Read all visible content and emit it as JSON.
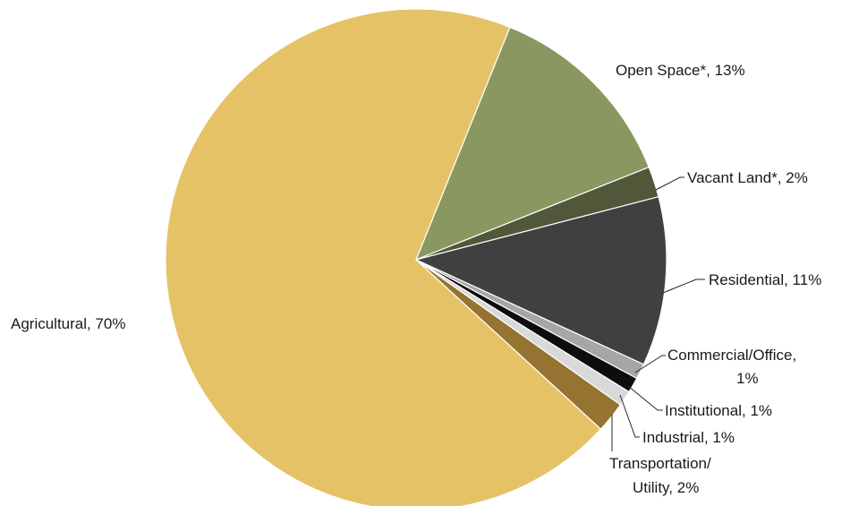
{
  "chart_data": {
    "type": "pie",
    "title": "",
    "start_angle_deg": 22,
    "direction": "clockwise",
    "slices": [
      {
        "label": "Open Space*, 13%",
        "value": 13,
        "color": "#899860"
      },
      {
        "label": "Vacant Land*, 2%",
        "value": 2,
        "color": "#515839"
      },
      {
        "label": "Residential, 11%",
        "value": 11,
        "color": "#404040"
      },
      {
        "label": "Commercial/Office, 1%",
        "value": 1,
        "color": "#a6a6a6"
      },
      {
        "label": "Institutional, 1%",
        "value": 1,
        "color": "#0d0d0d"
      },
      {
        "label": "Industrial, 1%",
        "value": 1,
        "color": "#d9d9d9"
      },
      {
        "label": "Transportation/ Utility, 2%",
        "value": 2,
        "color": "#957330"
      },
      {
        "label": "Agricultural, 70%",
        "value": 70,
        "color": "#e6c267"
      }
    ],
    "data_labels": {
      "open_space": "Open Space*, 13%",
      "vacant_land": "Vacant Land*, 2%",
      "residential": "Residential, 11%",
      "commercial_line1": "Commercial/Office,",
      "commercial_line2": "1%",
      "institutional": "Institutional, 1%",
      "industrial": "Industrial, 1%",
      "transportation_line1": "Transportation/",
      "transportation_line2": "Utility, 2%",
      "agricultural": "Agricultural, 70%"
    }
  }
}
